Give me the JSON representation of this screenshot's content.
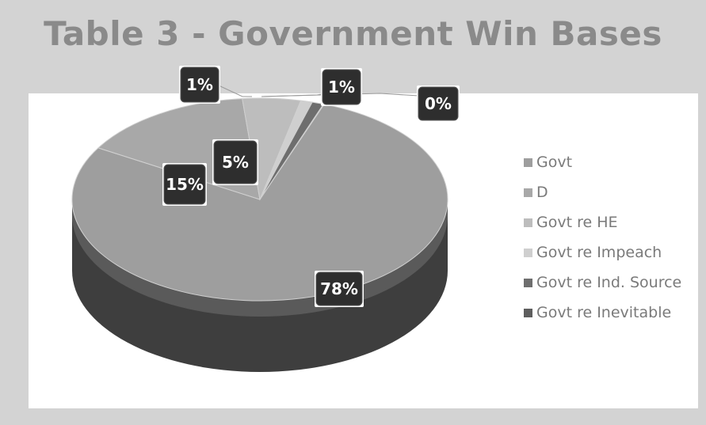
{
  "title": "Table 3 - Government Win Bases",
  "chart_data": {
    "type": "pie",
    "title": "Table 3 - Government Win Bases",
    "series": [
      {
        "name": "Govt",
        "value": 78,
        "label": "78%",
        "color": "#9e9e9e"
      },
      {
        "name": "D",
        "value": 15,
        "label": "15%",
        "color": "#a8a8a8"
      },
      {
        "name": "Govt re HE",
        "value": 5,
        "label": "5%",
        "color": "#bdbdbd"
      },
      {
        "name": "Govt re Impeach",
        "value": 1,
        "label": "1%",
        "color": "#cfcfcf"
      },
      {
        "name": "Govt re Ind. Source",
        "value": 1,
        "label": "1%",
        "color": "#6e6e6e"
      },
      {
        "name": "Govt re Inevitable",
        "value": 0,
        "label": "0%",
        "color": "#5e5e5e"
      }
    ],
    "legend_position": "right",
    "style": "3d"
  }
}
